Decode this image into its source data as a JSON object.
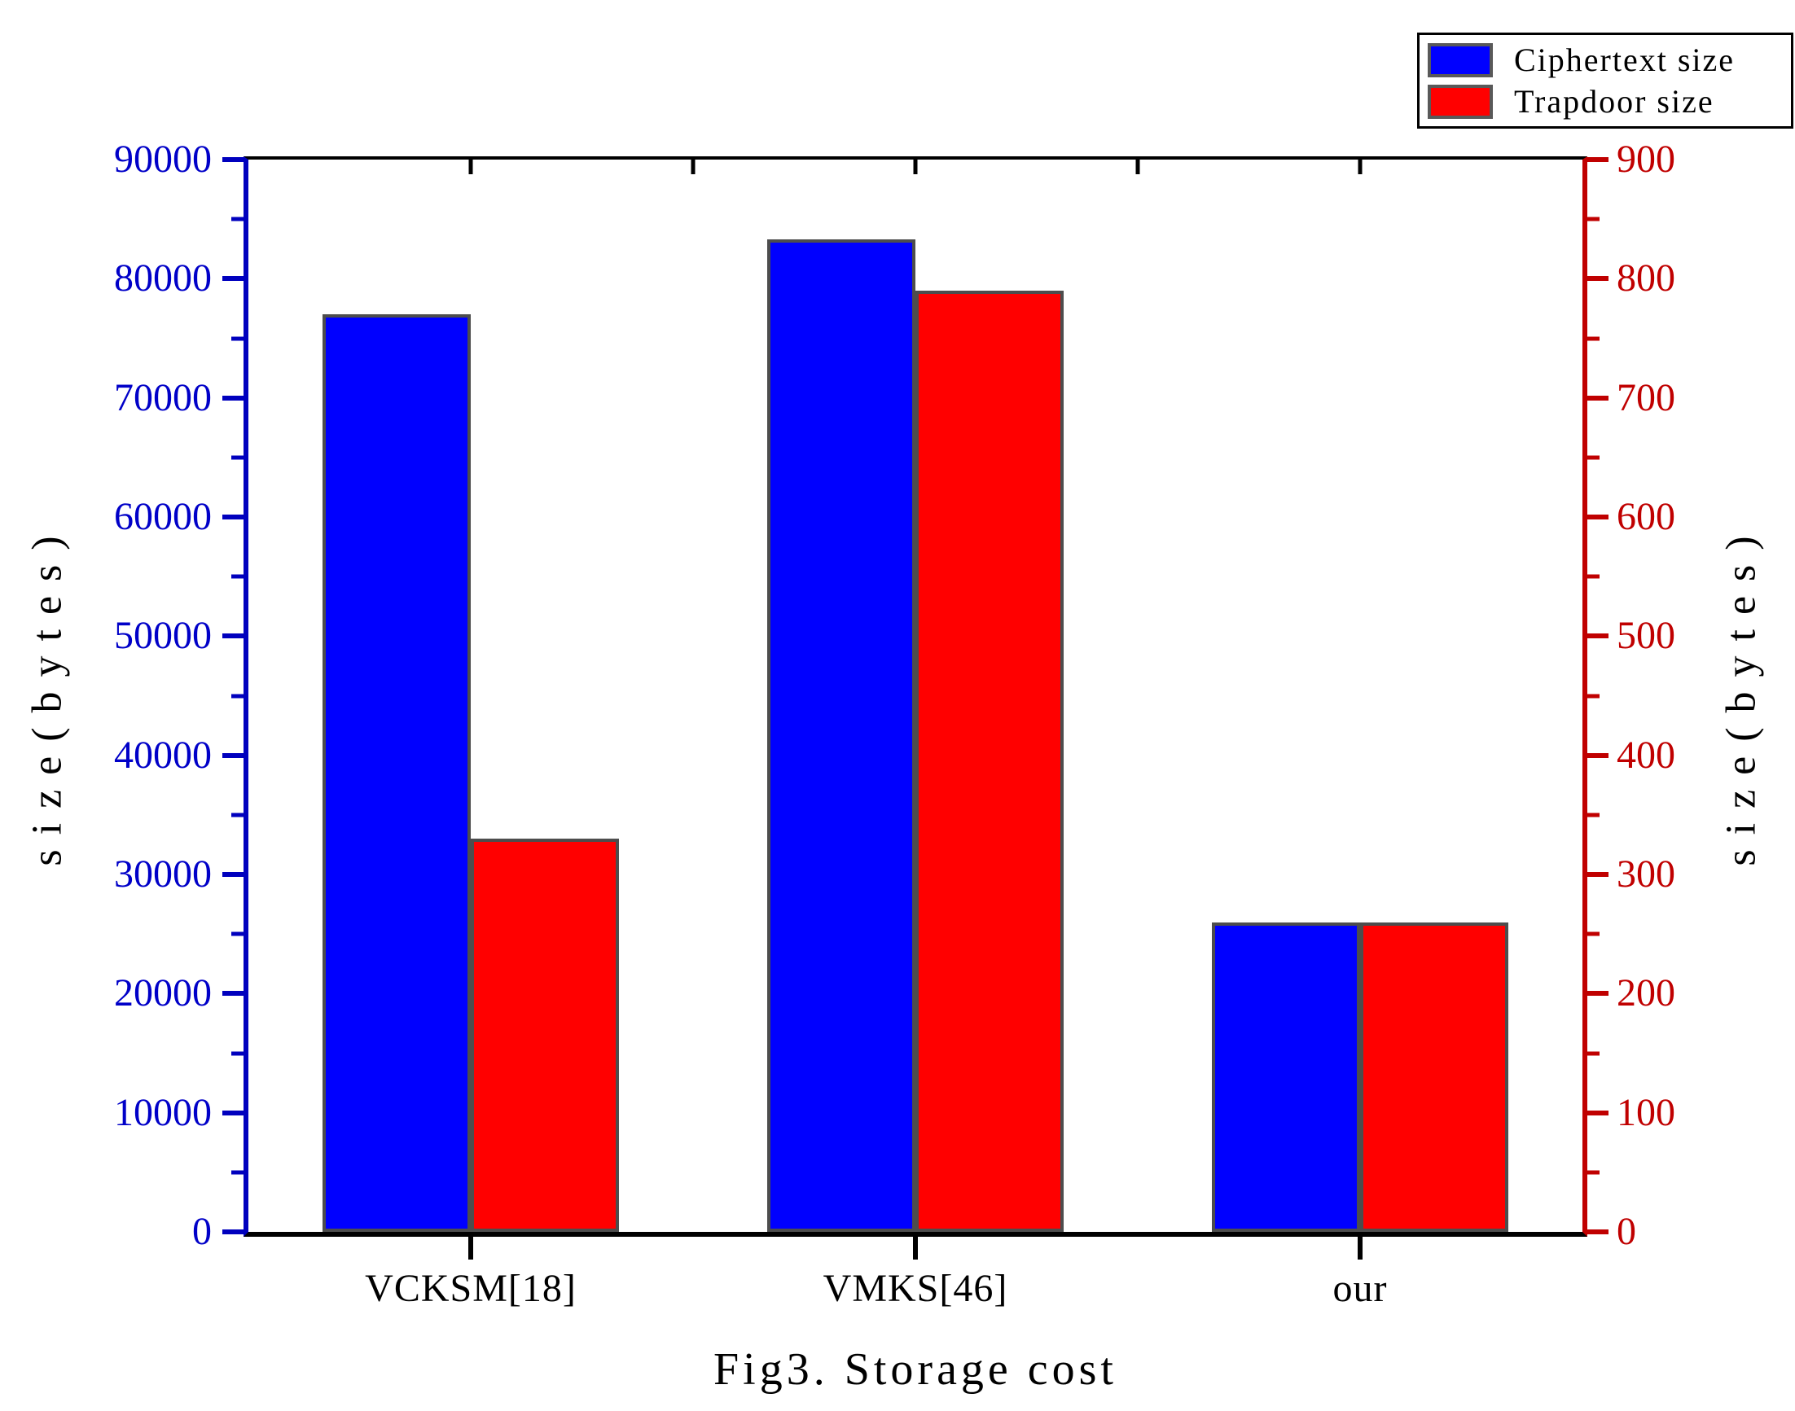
{
  "legend": {
    "items": [
      {
        "label": "Ciphertext size",
        "color": "#0000FF"
      },
      {
        "label": "Trapdoor size",
        "color": "#FF0000"
      }
    ]
  },
  "chart_data": {
    "type": "bar",
    "title": "Fig3. Storage cost",
    "categories": [
      "VCKSM[18]",
      "VMKS[46]",
      "our"
    ],
    "series": [
      {
        "name": "Ciphertext size",
        "axis": "left",
        "color": "#0000FF",
        "values": [
          77000,
          83300,
          26000
        ]
      },
      {
        "name": "Trapdoor size",
        "axis": "right",
        "color": "#FF0000",
        "values": [
          330,
          790,
          260
        ]
      }
    ],
    "left_axis": {
      "label": "size(bytes)",
      "min": 0,
      "max": 90000,
      "ticks": [
        0,
        10000,
        20000,
        30000,
        40000,
        50000,
        60000,
        70000,
        80000,
        90000
      ],
      "minor_step": 5000,
      "color": "#0000BE"
    },
    "right_axis": {
      "label": "size(bytes)",
      "min": 0,
      "max": 900,
      "ticks": [
        0,
        100,
        200,
        300,
        400,
        500,
        600,
        700,
        800,
        900
      ],
      "minor_step": 50,
      "color": "#C00000"
    },
    "grid": false,
    "legend_position": "top-right",
    "bar_width_frac_of_slot": 0.4,
    "bar_border_color": "#4D4D4D"
  }
}
